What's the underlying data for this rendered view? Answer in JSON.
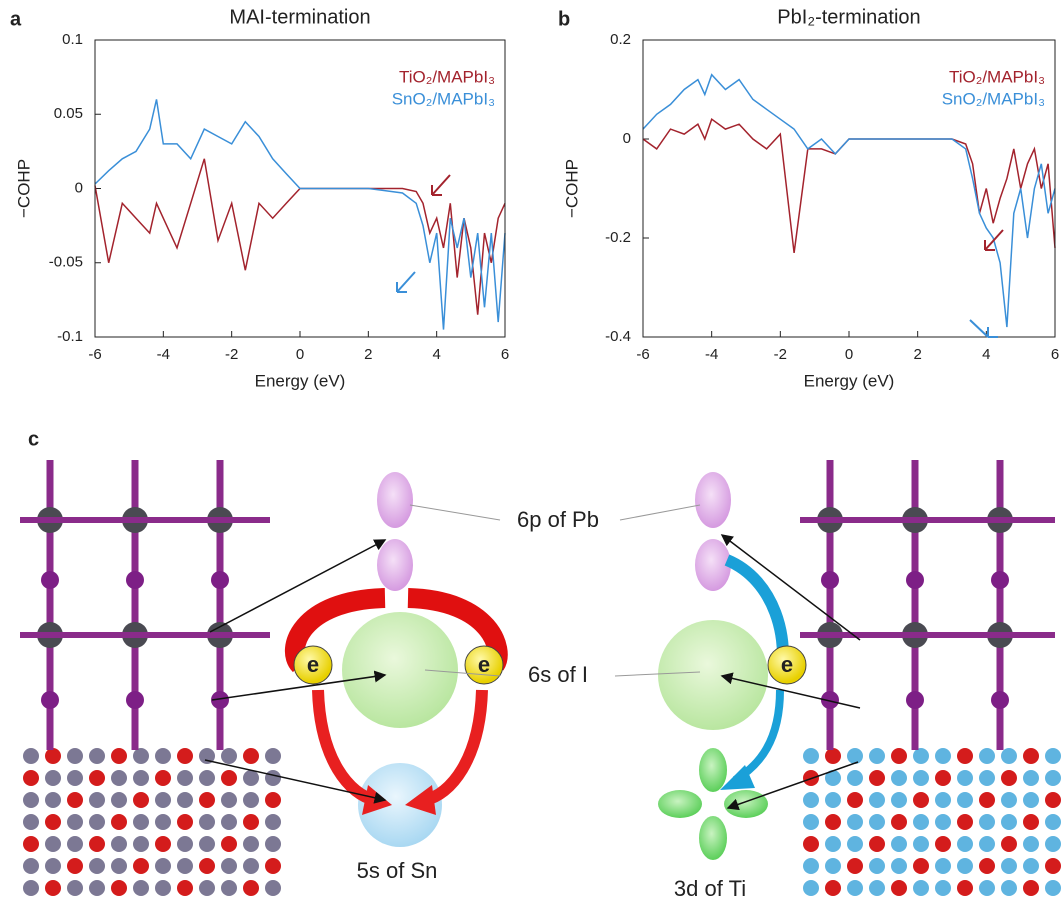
{
  "chart_data": [
    {
      "type": "line",
      "panel_label": "a",
      "title": "MAI-termination",
      "xlabel": "Energy (eV)",
      "ylabel": "−COHP",
      "x": [
        -6,
        -5.6,
        -5.2,
        -4.8,
        -4.4,
        -4.2,
        -4,
        -3.6,
        -3.2,
        -2.8,
        -2.4,
        -2,
        -1.6,
        -1.2,
        -0.8,
        -0.4,
        0,
        1,
        2,
        3,
        3.4,
        3.6,
        3.8,
        4,
        4.2,
        4.4,
        4.6,
        4.8,
        5,
        5.2,
        5.4,
        5.6,
        5.8,
        6
      ],
      "series": [
        {
          "name": "TiO₂/MAPbI₃",
          "color": "#a3232d",
          "values": [
            0.002,
            -0.05,
            -0.01,
            -0.02,
            -0.03,
            -0.01,
            -0.02,
            -0.04,
            -0.01,
            0.02,
            -0.035,
            -0.01,
            -0.055,
            -0.01,
            -0.02,
            -0.01,
            0,
            0,
            0,
            0,
            -0.002,
            -0.01,
            -0.03,
            -0.02,
            -0.04,
            -0.01,
            -0.06,
            -0.02,
            -0.04,
            -0.085,
            -0.03,
            -0.05,
            -0.02,
            -0.01
          ]
        },
        {
          "name": "SnO₂/MAPbI₃",
          "color": "#3a8fd8",
          "values": [
            0.003,
            0.012,
            0.02,
            0.025,
            0.04,
            0.06,
            0.03,
            0.03,
            0.02,
            0.04,
            0.035,
            0.03,
            0.045,
            0.035,
            0.02,
            0.01,
            0,
            0,
            0,
            -0.003,
            -0.01,
            -0.025,
            -0.05,
            -0.03,
            -0.095,
            -0.02,
            -0.04,
            -0.02,
            -0.06,
            -0.03,
            -0.08,
            -0.03,
            -0.09,
            -0.03
          ]
        }
      ],
      "xlim": [
        -6,
        6
      ],
      "ylim": [
        -0.1,
        0.1
      ],
      "xticks": [
        -6,
        -4,
        -2,
        0,
        2,
        4,
        6
      ],
      "yticks": [
        -0.1,
        -0.05,
        0,
        0.05,
        0.1
      ],
      "legend": "upper right"
    },
    {
      "type": "line",
      "panel_label": "b",
      "title": "PbI₂-termination",
      "xlabel": "Energy (eV)",
      "ylabel": "−COHP",
      "x": [
        -6,
        -5.6,
        -5.2,
        -4.8,
        -4.4,
        -4.2,
        -4,
        -3.6,
        -3.2,
        -2.8,
        -2.4,
        -2,
        -1.6,
        -1.2,
        -0.8,
        -0.4,
        0,
        1,
        2,
        3,
        3.4,
        3.6,
        3.8,
        4,
        4.2,
        4.4,
        4.6,
        4.8,
        5,
        5.2,
        5.4,
        5.6,
        5.8,
        6
      ],
      "series": [
        {
          "name": "TiO₂/MAPbI₃",
          "color": "#a3232d",
          "values": [
            0,
            -0.02,
            0.02,
            0.01,
            0.03,
            0,
            0.04,
            0.02,
            0.03,
            0,
            -0.02,
            0.01,
            -0.23,
            -0.02,
            -0.02,
            -0.03,
            0,
            0,
            0,
            0,
            -0.01,
            -0.05,
            -0.15,
            -0.1,
            -0.17,
            -0.12,
            -0.08,
            -0.02,
            -0.1,
            -0.05,
            -0.02,
            -0.1,
            -0.05,
            -0.22
          ]
        },
        {
          "name": "SnO₂/MAPbI₃",
          "color": "#3a8fd8",
          "values": [
            0.02,
            0.05,
            0.07,
            0.1,
            0.12,
            0.09,
            0.13,
            0.1,
            0.12,
            0.08,
            0.06,
            0.04,
            0.02,
            -0.02,
            0,
            -0.03,
            0,
            0,
            0,
            0,
            -0.02,
            -0.08,
            -0.15,
            -0.18,
            -0.2,
            -0.25,
            -0.38,
            -0.15,
            -0.1,
            -0.2,
            -0.1,
            -0.05,
            -0.15,
            -0.1
          ]
        }
      ],
      "xlim": [
        -6,
        6
      ],
      "ylim": [
        -0.4,
        0.2
      ],
      "xticks": [
        -6,
        -4,
        -2,
        0,
        2,
        4,
        6
      ],
      "yticks": [
        -0.4,
        -0.2,
        0,
        0.2
      ],
      "legend": "upper right"
    }
  ],
  "diagram": {
    "panel_label": "c",
    "labels": [
      "6p of Pb",
      "6s of I",
      "5s of Sn",
      "3d of Ti"
    ],
    "electron": [
      "e",
      "e",
      "e"
    ]
  }
}
